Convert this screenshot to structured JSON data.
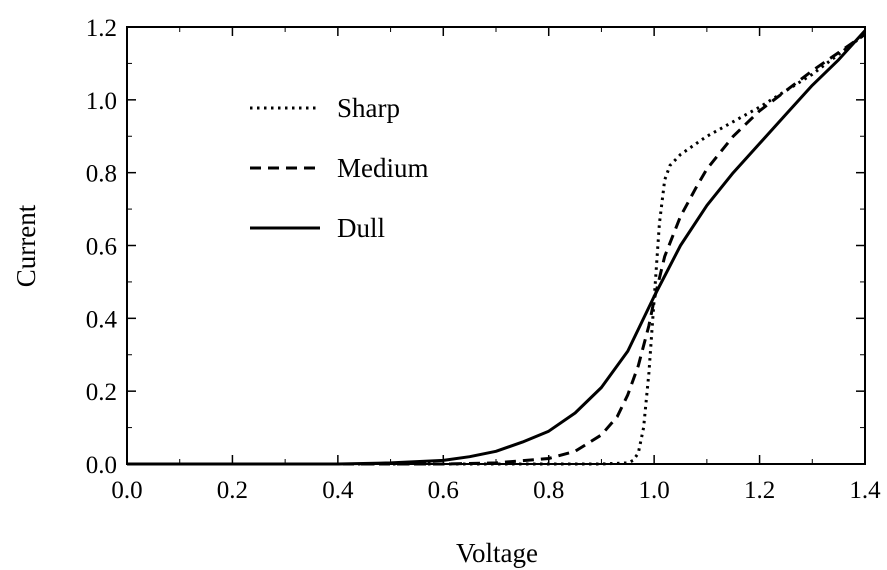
{
  "chart_data": {
    "type": "line",
    "title": "",
    "xlabel": "Voltage",
    "ylabel": "Current",
    "xlim": [
      0.0,
      1.4
    ],
    "ylim": [
      0.0,
      1.2
    ],
    "xticks": [
      "0.0",
      "0.2",
      "0.4",
      "0.6",
      "0.8",
      "1.0",
      "1.2",
      "1.4"
    ],
    "yticks": [
      "0.0",
      "0.2",
      "0.4",
      "0.6",
      "0.8",
      "1.0",
      "1.2"
    ],
    "grid": false,
    "legend_position": "top-left",
    "series": [
      {
        "name": "Sharp",
        "style": "dotted",
        "color": "#000000",
        "x": [
          0.0,
          0.6,
          0.9,
          0.95,
          0.96,
          0.97,
          0.98,
          0.99,
          1.0,
          1.01,
          1.02,
          1.03,
          1.05,
          1.08,
          1.1,
          1.15,
          1.2,
          1.3,
          1.4
        ],
        "y": [
          0.0,
          0.0,
          0.0,
          0.003,
          0.01,
          0.03,
          0.1,
          0.25,
          0.45,
          0.66,
          0.78,
          0.82,
          0.85,
          0.88,
          0.9,
          0.94,
          0.98,
          1.07,
          1.18
        ]
      },
      {
        "name": "Medium",
        "style": "dashed",
        "color": "#000000",
        "x": [
          0.0,
          0.6,
          0.7,
          0.8,
          0.85,
          0.9,
          0.93,
          0.95,
          0.97,
          0.99,
          1.0,
          1.02,
          1.05,
          1.08,
          1.1,
          1.15,
          1.2,
          1.3,
          1.4
        ],
        "y": [
          0.0,
          0.0,
          0.003,
          0.015,
          0.035,
          0.08,
          0.13,
          0.19,
          0.27,
          0.38,
          0.45,
          0.57,
          0.68,
          0.76,
          0.81,
          0.9,
          0.97,
          1.08,
          1.18
        ]
      },
      {
        "name": "Dull",
        "style": "solid",
        "color": "#000000",
        "x": [
          0.0,
          0.4,
          0.5,
          0.6,
          0.65,
          0.7,
          0.75,
          0.8,
          0.85,
          0.9,
          0.95,
          1.0,
          1.05,
          1.1,
          1.15,
          1.2,
          1.25,
          1.3,
          1.35,
          1.4
        ],
        "y": [
          0.0,
          0.0,
          0.003,
          0.01,
          0.02,
          0.035,
          0.06,
          0.09,
          0.14,
          0.21,
          0.31,
          0.46,
          0.6,
          0.71,
          0.8,
          0.88,
          0.96,
          1.04,
          1.11,
          1.19
        ]
      }
    ]
  }
}
